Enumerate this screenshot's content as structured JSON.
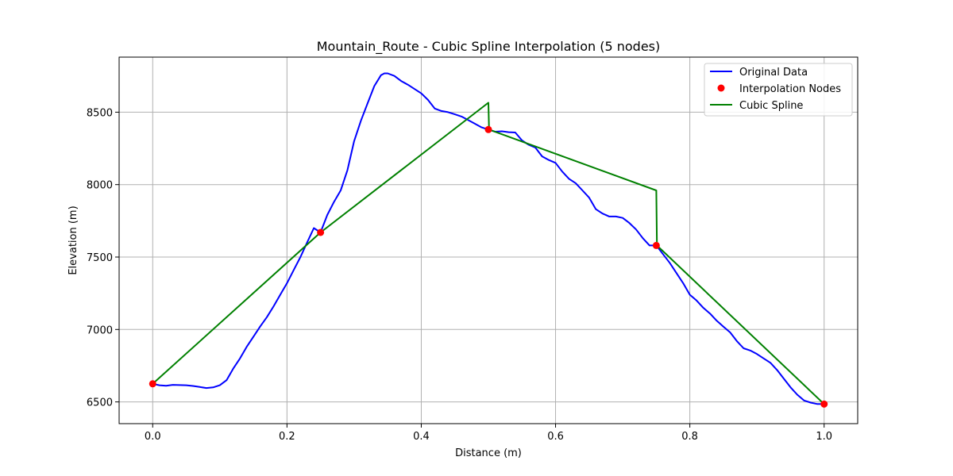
{
  "chart_data": {
    "type": "line",
    "title": "Mountain_Route - Cubic Spline Interpolation (5 nodes)",
    "xlabel": "Distance (m)",
    "ylabel": "Elevation (m)",
    "xlim": [
      -0.05,
      1.05
    ],
    "ylim": [
      6350,
      8880
    ],
    "x_ticks": [
      0.0,
      0.2,
      0.4,
      0.6,
      0.8,
      1.0
    ],
    "x_tick_labels": [
      "0.0",
      "0.2",
      "0.4",
      "0.6",
      "0.8",
      "1.0"
    ],
    "y_ticks": [
      6500,
      7000,
      7500,
      8000,
      8500
    ],
    "y_tick_labels": [
      "6500",
      "7000",
      "7500",
      "8000",
      "8500"
    ],
    "grid": true,
    "legend_position": "top-right",
    "series": [
      {
        "name": "Original Data",
        "kind": "line",
        "color": "#0000ff",
        "x": [
          0.0,
          0.01,
          0.02,
          0.03,
          0.04,
          0.05,
          0.06,
          0.07,
          0.08,
          0.09,
          0.1,
          0.11,
          0.12,
          0.13,
          0.14,
          0.15,
          0.16,
          0.17,
          0.18,
          0.19,
          0.2,
          0.21,
          0.22,
          0.23,
          0.24,
          0.25,
          0.26,
          0.27,
          0.28,
          0.29,
          0.3,
          0.31,
          0.32,
          0.33,
          0.34,
          0.345,
          0.35,
          0.36,
          0.37,
          0.38,
          0.39,
          0.4,
          0.41,
          0.42,
          0.43,
          0.44,
          0.45,
          0.46,
          0.47,
          0.48,
          0.49,
          0.5,
          0.51,
          0.52,
          0.53,
          0.54,
          0.55,
          0.56,
          0.57,
          0.58,
          0.59,
          0.6,
          0.61,
          0.62,
          0.63,
          0.64,
          0.65,
          0.66,
          0.67,
          0.68,
          0.69,
          0.7,
          0.71,
          0.72,
          0.73,
          0.74,
          0.75,
          0.76,
          0.77,
          0.78,
          0.79,
          0.8,
          0.81,
          0.82,
          0.83,
          0.84,
          0.85,
          0.86,
          0.87,
          0.88,
          0.89,
          0.9,
          0.91,
          0.92,
          0.93,
          0.94,
          0.95,
          0.96,
          0.97,
          0.98,
          0.99,
          1.0
        ],
        "y": [
          6625,
          6615,
          6612,
          6618,
          6616,
          6615,
          6610,
          6603,
          6596,
          6600,
          6615,
          6650,
          6730,
          6800,
          6880,
          6950,
          7020,
          7085,
          7160,
          7240,
          7320,
          7410,
          7500,
          7600,
          7700,
          7670,
          7790,
          7880,
          7960,
          8100,
          8300,
          8440,
          8560,
          8680,
          8755,
          8768,
          8768,
          8750,
          8715,
          8690,
          8660,
          8630,
          8585,
          8525,
          8508,
          8500,
          8485,
          8470,
          8445,
          8420,
          8395,
          8380,
          8365,
          8368,
          8362,
          8360,
          8305,
          8275,
          8255,
          8195,
          8170,
          8150,
          8090,
          8040,
          8010,
          7960,
          7910,
          7830,
          7800,
          7780,
          7780,
          7770,
          7735,
          7690,
          7630,
          7580,
          7580,
          7520,
          7460,
          7390,
          7320,
          7240,
          7200,
          7150,
          7110,
          7060,
          7020,
          6980,
          6920,
          6870,
          6855,
          6830,
          6800,
          6770,
          6720,
          6660,
          6600,
          6550,
          6510,
          6495,
          6485,
          6485
        ]
      },
      {
        "name": "Interpolation Nodes",
        "kind": "scatter",
        "color": "#ff0000",
        "x": [
          0.0,
          0.25,
          0.5,
          0.75,
          1.0
        ],
        "y": [
          6625,
          7670,
          8380,
          7580,
          6485
        ]
      },
      {
        "name": "Cubic Spline",
        "kind": "line",
        "color": "#008000",
        "x": [
          0.0,
          0.25,
          0.4999,
          0.5,
          0.501,
          0.7499,
          0.75,
          0.751,
          1.0
        ],
        "y": [
          6625,
          7670,
          8565,
          8565,
          8380,
          7960,
          7960,
          7580,
          6485
        ]
      }
    ]
  }
}
